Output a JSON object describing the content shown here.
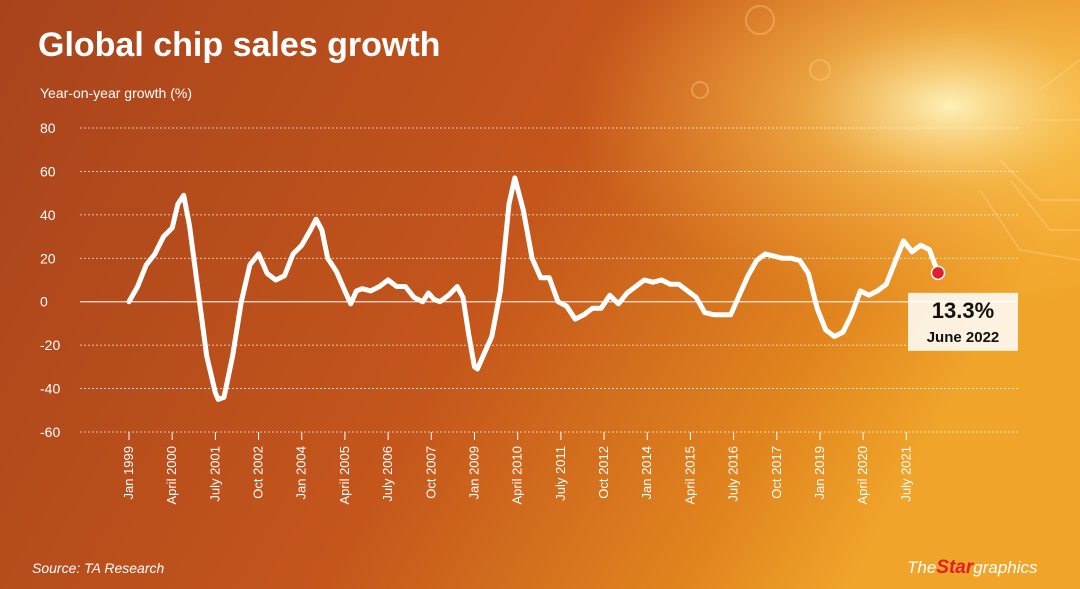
{
  "chart_data": {
    "type": "line",
    "title": "Global chip sales growth",
    "y_axis_label": "Year-on-year growth (%)",
    "source": "Source: TA Research",
    "branding": {
      "the": "The",
      "star": "Star",
      "graphics": "graphics"
    },
    "ylim": [
      -60,
      80
    ],
    "yticks": [
      -60,
      -40,
      -20,
      0,
      20,
      40,
      60,
      80
    ],
    "grid": true,
    "xlim": [
      "1999-01",
      "2022-06"
    ],
    "xticks": [
      {
        "value": "1999-01",
        "label": "Jan 1999"
      },
      {
        "value": "2000-04",
        "label": "April 2000"
      },
      {
        "value": "2001-07",
        "label": "July 2001"
      },
      {
        "value": "2002-10",
        "label": "Oct 2002"
      },
      {
        "value": "2004-01",
        "label": "Jan 2004"
      },
      {
        "value": "2005-04",
        "label": "April 2005"
      },
      {
        "value": "2006-07",
        "label": "July 2006"
      },
      {
        "value": "2007-10",
        "label": "Oct 2007"
      },
      {
        "value": "2009-01",
        "label": "Jan 2009"
      },
      {
        "value": "2010-04",
        "label": "April 2010"
      },
      {
        "value": "2011-07",
        "label": "July 2011"
      },
      {
        "value": "2012-10",
        "label": "Oct 2012"
      },
      {
        "value": "2014-01",
        "label": "Jan 2014"
      },
      {
        "value": "2015-04",
        "label": "April 2015"
      },
      {
        "value": "2016-07",
        "label": "July 2016"
      },
      {
        "value": "2017-10",
        "label": "Oct 2017"
      },
      {
        "value": "2019-01",
        "label": "Jan 2019"
      },
      {
        "value": "2020-04",
        "label": "April 2020"
      },
      {
        "value": "2021-07",
        "label": "July 2021"
      }
    ],
    "x": [
      "1999-01",
      "1999-04",
      "1999-07",
      "1999-10",
      "2000-01",
      "2000-04",
      "2000-06",
      "2000-08",
      "2000-10",
      "2001-01",
      "2001-04",
      "2001-07",
      "2001-08",
      "2001-10",
      "2002-01",
      "2002-04",
      "2002-07",
      "2002-10",
      "2003-01",
      "2003-04",
      "2003-07",
      "2003-10",
      "2004-01",
      "2004-04",
      "2004-06",
      "2004-08",
      "2004-10",
      "2005-01",
      "2005-04",
      "2005-06",
      "2005-08",
      "2005-10",
      "2006-01",
      "2006-04",
      "2006-07",
      "2006-10",
      "2007-01",
      "2007-04",
      "2007-07",
      "2007-09",
      "2007-11",
      "2008-01",
      "2008-04",
      "2008-07",
      "2008-09",
      "2008-11",
      "2009-01",
      "2009-02",
      "2009-04",
      "2009-07",
      "2009-10",
      "2010-01",
      "2010-03",
      "2010-06",
      "2010-09",
      "2010-12",
      "2011-03",
      "2011-06",
      "2011-09",
      "2011-12",
      "2012-03",
      "2012-06",
      "2012-09",
      "2012-12",
      "2013-03",
      "2013-06",
      "2013-09",
      "2013-12",
      "2014-03",
      "2014-06",
      "2014-09",
      "2014-12",
      "2015-03",
      "2015-06",
      "2015-09",
      "2015-12",
      "2016-03",
      "2016-06",
      "2016-09",
      "2016-12",
      "2017-03",
      "2017-06",
      "2017-09",
      "2017-12",
      "2018-03",
      "2018-06",
      "2018-09",
      "2018-12",
      "2019-03",
      "2019-06",
      "2019-09",
      "2019-12",
      "2020-03",
      "2020-06",
      "2020-09",
      "2020-12",
      "2021-03",
      "2021-06",
      "2021-09",
      "2021-12",
      "2022-03",
      "2022-06"
    ],
    "series": [
      {
        "name": "Global chip sales growth",
        "color": "#ffffff",
        "values": [
          0,
          7,
          17,
          22,
          30,
          34,
          45,
          49,
          35,
          5,
          -25,
          -42,
          -45,
          -44,
          -25,
          0,
          17,
          22,
          13,
          10,
          12,
          22,
          26,
          33,
          38,
          33,
          20,
          14,
          5,
          -1,
          5,
          6,
          5,
          7,
          10,
          7,
          7,
          2,
          0,
          4,
          1,
          0,
          3,
          7,
          2,
          -15,
          -30,
          -31,
          -25,
          -16,
          5,
          45,
          57,
          42,
          20,
          11,
          11,
          0,
          -2,
          -8,
          -6,
          -3,
          -3,
          3,
          -1,
          4,
          7,
          10,
          9,
          10,
          8,
          8,
          5,
          2,
          -5,
          -6,
          -6,
          -6,
          3,
          12,
          19,
          22,
          21,
          20,
          20,
          19,
          13,
          -3,
          -13,
          -16,
          -14,
          -6,
          5,
          3,
          5,
          8,
          18,
          28,
          23,
          26,
          24,
          13.3
        ]
      }
    ],
    "highlight": {
      "label": "13.3%",
      "date": "June 2022",
      "color": "#e0202a"
    }
  }
}
